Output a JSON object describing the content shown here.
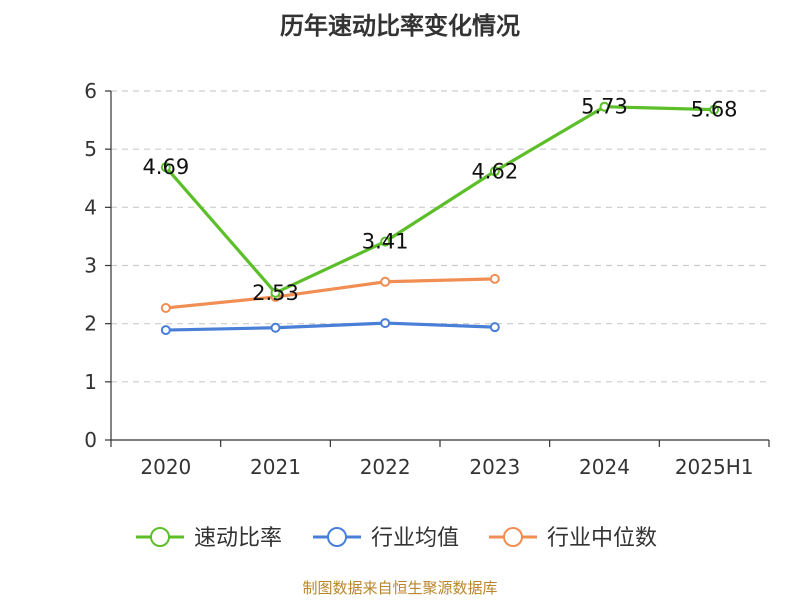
{
  "chart_data": {
    "type": "line",
    "title": "历年速动比率变化情况",
    "categories": [
      "2020",
      "2021",
      "2022",
      "2023",
      "2024",
      "2025H1"
    ],
    "ylim": [
      0,
      6
    ],
    "yticks": [
      0,
      1,
      2,
      3,
      4,
      5,
      6
    ],
    "grid": true,
    "legend_position": "bottom",
    "series": [
      {
        "name": "速动比率",
        "color": "#5cbf2a",
        "values": [
          4.69,
          2.53,
          3.41,
          4.62,
          5.73,
          5.68
        ],
        "show_labels": true
      },
      {
        "name": "行业均值",
        "color": "#4a7fd8",
        "values": [
          1.89,
          1.93,
          2.01,
          1.94,
          null,
          null
        ],
        "show_labels": false
      },
      {
        "name": "行业中位数",
        "color": "#f08e54",
        "values": [
          2.27,
          2.46,
          2.72,
          2.77,
          null,
          null
        ],
        "show_labels": false
      }
    ]
  },
  "source": "制图数据来自恒生聚源数据库"
}
